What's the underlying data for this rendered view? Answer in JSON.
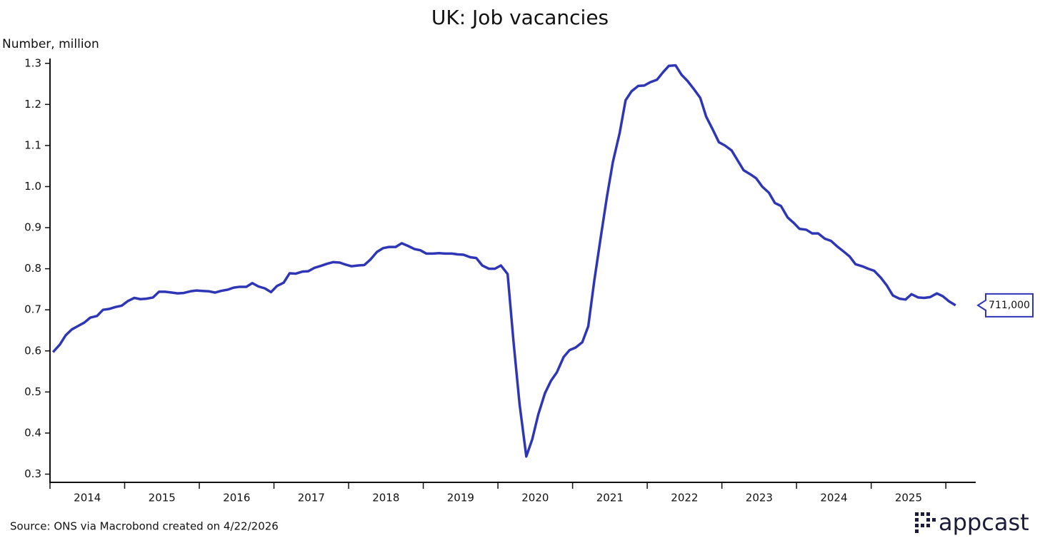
{
  "chart_data": {
    "type": "line",
    "title": "UK: Job vacancies",
    "y_label": "Number, million",
    "source": "Source: ONS via Macrobond created on 4/22/2026",
    "logo": "appcast",
    "color": "#2e36b6",
    "x": [
      2014.04,
      2014.13,
      2014.21,
      2014.29,
      2014.38,
      2014.46,
      2014.54,
      2014.63,
      2014.71,
      2014.79,
      2014.88,
      2014.96,
      2015.04,
      2015.13,
      2015.21,
      2015.29,
      2015.38,
      2015.46,
      2015.54,
      2015.63,
      2015.71,
      2015.79,
      2015.88,
      2015.96,
      2016.04,
      2016.13,
      2016.21,
      2016.29,
      2016.38,
      2016.46,
      2016.54,
      2016.63,
      2016.71,
      2016.79,
      2016.88,
      2016.96,
      2017.04,
      2017.13,
      2017.21,
      2017.29,
      2017.38,
      2017.46,
      2017.54,
      2017.63,
      2017.71,
      2017.79,
      2017.88,
      2017.96,
      2018.04,
      2018.13,
      2018.21,
      2018.29,
      2018.38,
      2018.46,
      2018.54,
      2018.63,
      2018.71,
      2018.79,
      2018.88,
      2018.96,
      2019.04,
      2019.13,
      2019.21,
      2019.29,
      2019.38,
      2019.46,
      2019.54,
      2019.63,
      2019.71,
      2019.79,
      2019.88,
      2019.96,
      2020.04,
      2020.13,
      2020.21,
      2020.29,
      2020.38,
      2020.46,
      2020.54,
      2020.63,
      2020.71,
      2020.79,
      2020.88,
      2020.96,
      2021.04,
      2021.13,
      2021.21,
      2021.29,
      2021.38,
      2021.46,
      2021.54,
      2021.63,
      2021.71,
      2021.79,
      2021.88,
      2021.96,
      2022.04,
      2022.13,
      2022.21,
      2022.29,
      2022.38,
      2022.46,
      2022.54,
      2022.63,
      2022.71,
      2022.79,
      2022.88,
      2022.96,
      2023.04,
      2023.13,
      2023.21,
      2023.29,
      2023.38,
      2023.46,
      2023.54,
      2023.63,
      2023.71,
      2023.79,
      2023.88,
      2023.96,
      2024.04,
      2024.13,
      2024.21,
      2024.29,
      2024.38,
      2024.46,
      2024.54,
      2024.63,
      2024.71,
      2024.79,
      2024.88,
      2024.96,
      2025.04,
      2025.13,
      2025.21,
      2025.29,
      2025.38,
      2025.46,
      2025.54,
      2025.63,
      2025.71,
      2025.79,
      2025.88,
      2025.96,
      2026.04,
      2026.13
    ],
    "values": [
      0.597,
      0.615,
      0.638,
      0.652,
      0.661,
      0.669,
      0.681,
      0.685,
      0.7,
      0.702,
      0.707,
      0.71,
      0.721,
      0.729,
      0.726,
      0.727,
      0.73,
      0.744,
      0.744,
      0.742,
      0.74,
      0.741,
      0.745,
      0.747,
      0.746,
      0.745,
      0.742,
      0.746,
      0.749,
      0.754,
      0.756,
      0.756,
      0.765,
      0.757,
      0.752,
      0.743,
      0.758,
      0.766,
      0.789,
      0.788,
      0.793,
      0.794,
      0.802,
      0.807,
      0.812,
      0.816,
      0.815,
      0.81,
      0.806,
      0.808,
      0.809,
      0.822,
      0.841,
      0.85,
      0.853,
      0.853,
      0.862,
      0.856,
      0.848,
      0.845,
      0.837,
      0.837,
      0.838,
      0.837,
      0.837,
      0.835,
      0.834,
      0.828,
      0.826,
      0.808,
      0.8,
      0.8,
      0.808,
      0.787,
      0.62,
      0.47,
      0.343,
      0.385,
      0.445,
      0.497,
      0.527,
      0.548,
      0.585,
      0.602,
      0.608,
      0.621,
      0.66,
      0.77,
      0.88,
      0.975,
      1.06,
      1.13,
      1.21,
      1.232,
      1.245,
      1.246,
      1.254,
      1.26,
      1.278,
      1.294,
      1.295,
      1.272,
      1.257,
      1.236,
      1.216,
      1.17,
      1.138,
      1.108,
      1.1,
      1.088,
      1.064,
      1.04,
      1.03,
      1.02,
      1.0,
      0.985,
      0.96,
      0.953,
      0.925,
      0.912,
      0.897,
      0.895,
      0.886,
      0.886,
      0.873,
      0.868,
      0.855,
      0.842,
      0.83,
      0.811,
      0.806,
      0.8,
      0.795,
      0.778,
      0.759,
      0.735,
      0.727,
      0.725,
      0.738,
      0.73,
      0.729,
      0.731,
      0.74,
      0.733,
      0.721,
      0.711
    ],
    "annotation": "711,000",
    "xlim": [
      2014,
      2026.4
    ],
    "xticks": [
      2014,
      2015,
      2016,
      2017,
      2018,
      2019,
      2020,
      2021,
      2022,
      2023,
      2024,
      2025,
      2026
    ],
    "xlabels": [
      "2014",
      "2015",
      "2016",
      "2017",
      "2018",
      "2019",
      "2020",
      "2021",
      "2022",
      "2023",
      "2024",
      "2025"
    ],
    "ylim": [
      0.28,
      1.31
    ],
    "yticks": [
      0.3,
      0.4,
      0.5,
      0.6,
      0.7,
      0.8,
      0.9,
      {
        "value": 1,
        "label": "1.0"
      },
      1.1,
      1.2,
      1.3
    ],
    "grid": false
  }
}
